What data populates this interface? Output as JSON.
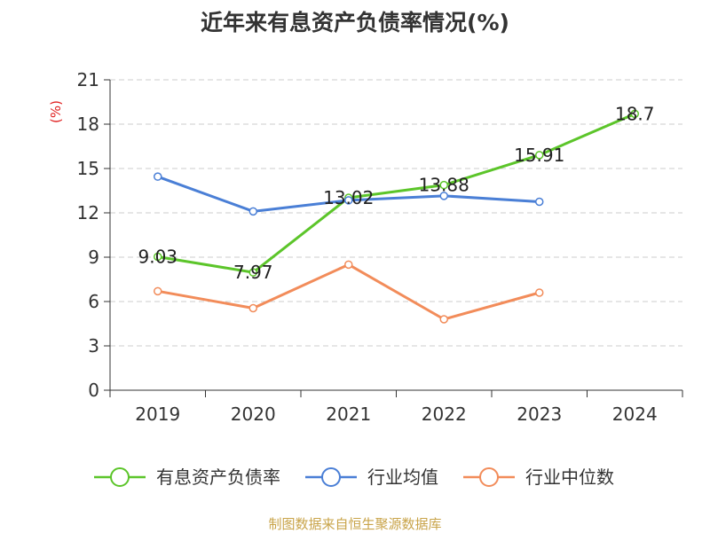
{
  "chart_data": {
    "type": "line",
    "title": "近年来有息资产负债率情况(%)",
    "ylabel": "(%)",
    "xlabel": "",
    "categories": [
      "2019",
      "2020",
      "2021",
      "2022",
      "2023",
      "2024"
    ],
    "ylim": [
      0,
      21
    ],
    "yticks": [
      0,
      3,
      6,
      9,
      12,
      15,
      18,
      21
    ],
    "grid": true,
    "legend_position": "bottom",
    "series": [
      {
        "name": "有息资产负债率",
        "color": "#5cc52a",
        "values": [
          9.03,
          7.97,
          13.02,
          13.88,
          15.91,
          18.7
        ],
        "labels": [
          "9.03",
          "7.97",
          "13.02",
          "13.88",
          "15.91",
          "18.7"
        ],
        "show_labels": true
      },
      {
        "name": "行业均值",
        "color": "#4a7fd6",
        "values": [
          14.45,
          12.1,
          12.85,
          13.15,
          12.75,
          null
        ],
        "show_labels": false
      },
      {
        "name": "行业中位数",
        "color": "#f28c5a",
        "values": [
          6.7,
          5.55,
          8.5,
          4.8,
          6.6,
          null
        ],
        "show_labels": false
      }
    ]
  },
  "source_note": "制图数据来自恒生聚源数据库"
}
